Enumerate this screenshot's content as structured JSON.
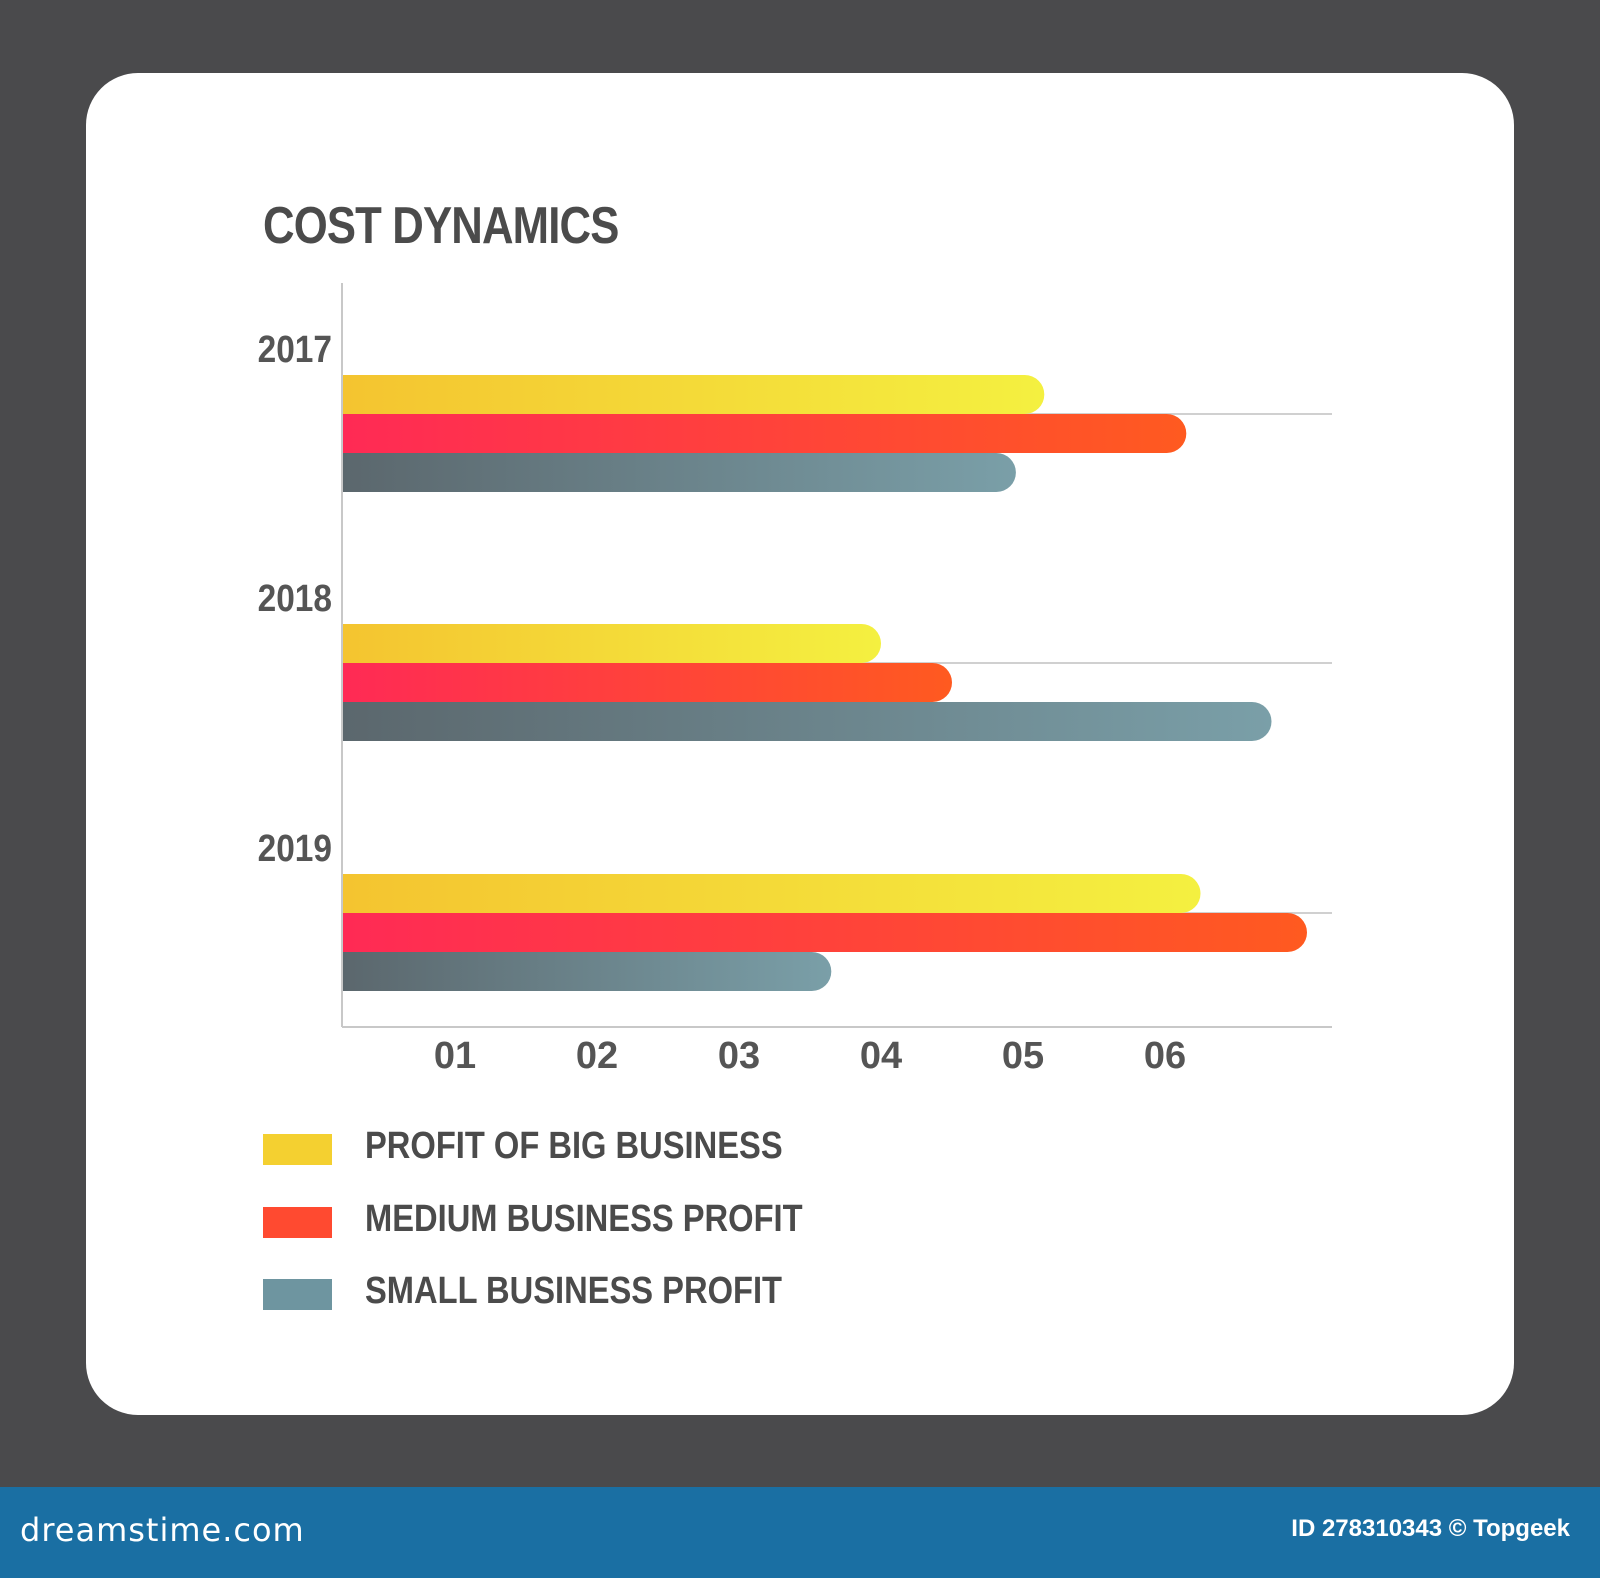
{
  "colors": {
    "big": [
      "#f4c430",
      "#f4f040"
    ],
    "medium": [
      "#ff2a55",
      "#ff5a20"
    ],
    "small": [
      "#5b676d",
      "#7a9fa8"
    ],
    "axis": "#c8c8c8",
    "text": "#4b4b4b"
  },
  "chart_data": {
    "type": "bar",
    "orientation": "horizontal",
    "title": "COST DYNAMICS",
    "categories": [
      "2017",
      "2018",
      "2019"
    ],
    "x_ticks": [
      "01",
      "02",
      "03",
      "04",
      "05",
      "06"
    ],
    "xlim": [
      0.2,
      7.2
    ],
    "series": [
      {
        "name": "PROFIT OF BIG BUSINESS",
        "values": [
          5.15,
          4.0,
          6.25
        ]
      },
      {
        "name": "MEDIUM BUSINESS PROFIT",
        "values": [
          6.15,
          4.5,
          7.0
        ]
      },
      {
        "name": "SMALL BUSINESS PROFIT",
        "values": [
          4.95,
          6.75,
          3.65
        ]
      }
    ],
    "legend_position": "bottom-left",
    "grid": false
  },
  "legend": [
    {
      "label": "PROFIT OF BIG BUSINESS",
      "color": "#f4d030"
    },
    {
      "label": "MEDIUM BUSINESS PROFIT",
      "color": "#ff4a30"
    },
    {
      "label": "SMALL BUSINESS PROFIT",
      "color": "#6e95a0"
    }
  ],
  "footer": {
    "brand": "dreamstime.com",
    "id_text": "ID 278310343 © Topgeek"
  }
}
